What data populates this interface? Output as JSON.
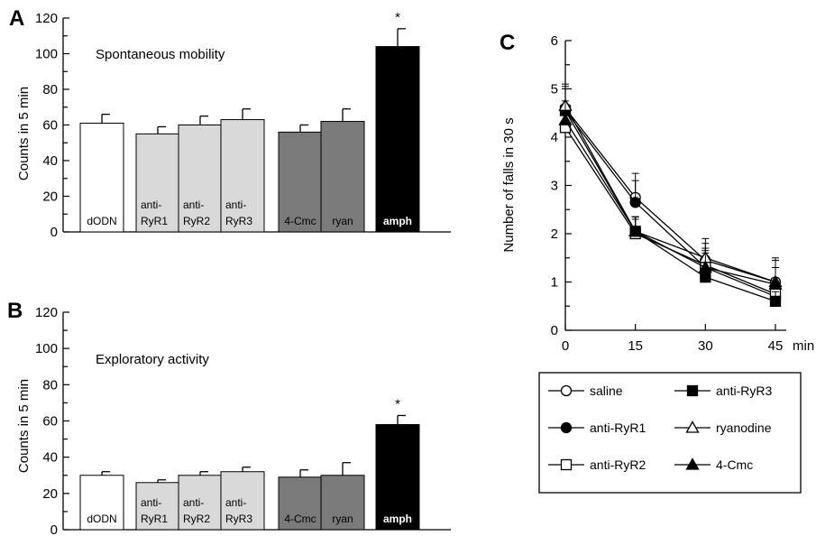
{
  "colors": {
    "white": "#ffffff",
    "light_gray": "#d9d9d9",
    "dark_gray": "#7a7a7a",
    "black": "#000000"
  },
  "chart_data": [
    {
      "panel": "A",
      "type": "bar",
      "title": "Spontaneous mobility",
      "ylabel": "Counts in 5 min",
      "ylim": [
        0,
        120
      ],
      "yticks": [
        0,
        20,
        40,
        60,
        80,
        100,
        120
      ],
      "categories": [
        "dODN",
        "anti-RyR1",
        "anti-RyR2",
        "anti-RyR3",
        "4-Cmc",
        "ryan",
        "amph"
      ],
      "label_lines": [
        [
          "dODN"
        ],
        [
          "anti-",
          "RyR1"
        ],
        [
          "anti-",
          "RyR2"
        ],
        [
          "anti-",
          "RyR3"
        ],
        [
          "4-Cmc"
        ],
        [
          "ryan"
        ],
        [
          "amph"
        ]
      ],
      "values": [
        61,
        55,
        60,
        63,
        56,
        62,
        104
      ],
      "errors": [
        5,
        4,
        5,
        6,
        4,
        7,
        10
      ],
      "fills": [
        "white",
        "light_gray",
        "light_gray",
        "light_gray",
        "dark_gray",
        "dark_gray",
        "black"
      ],
      "significance": [
        "",
        "",
        "",
        "",
        "",
        "",
        "*"
      ]
    },
    {
      "panel": "B",
      "type": "bar",
      "title": "Exploratory activity",
      "ylabel": "Counts in 5 min",
      "ylim": [
        0,
        120
      ],
      "yticks": [
        0,
        20,
        40,
        60,
        80,
        100,
        120
      ],
      "categories": [
        "dODN",
        "anti-RyR1",
        "anti-RyR2",
        "anti-RyR3",
        "4-Cmc",
        "ryan",
        "amph"
      ],
      "label_lines": [
        [
          "dODN"
        ],
        [
          "anti-",
          "RyR1"
        ],
        [
          "anti-",
          "RyR2"
        ],
        [
          "anti-",
          "RyR3"
        ],
        [
          "4-Cmc"
        ],
        [
          "ryan"
        ],
        [
          "amph"
        ]
      ],
      "values": [
        30,
        26,
        30,
        32,
        29,
        30,
        58
      ],
      "errors": [
        2,
        1.5,
        2,
        2.5,
        4,
        7,
        5
      ],
      "fills": [
        "white",
        "light_gray",
        "light_gray",
        "light_gray",
        "dark_gray",
        "dark_gray",
        "black"
      ],
      "significance": [
        "",
        "",
        "",
        "",
        "",
        "",
        "*"
      ]
    },
    {
      "panel": "C",
      "type": "line",
      "ylabel": "Number of falls in 30 s",
      "xlabel": "min",
      "x": [
        0,
        15,
        30,
        45
      ],
      "xlim": [
        0,
        45
      ],
      "ylim": [
        0,
        6
      ],
      "yticks": [
        0,
        1,
        2,
        3,
        4,
        5,
        6
      ],
      "series": [
        {
          "name": "saline",
          "marker": "circle-open",
          "values": [
            4.6,
            2.75,
            1.45,
            1.0
          ],
          "errors": [
            0.45,
            0.5,
            0.35,
            0.45
          ]
        },
        {
          "name": "anti-RyR1",
          "marker": "circle-filled",
          "values": [
            4.55,
            2.65,
            1.3,
            0.7
          ],
          "errors": [
            0.45,
            0.45,
            0.3,
            0.3
          ]
        },
        {
          "name": "anti-RyR2",
          "marker": "square-open",
          "values": [
            4.2,
            2.0,
            1.35,
            0.75
          ],
          "errors": [
            0.35,
            0.3,
            0.35,
            0.25
          ]
        },
        {
          "name": "anti-RyR3",
          "marker": "square-filled",
          "values": [
            4.55,
            2.05,
            1.1,
            0.6
          ],
          "errors": [
            0.45,
            0.3,
            0.3,
            0.2
          ]
        },
        {
          "name": "ryanodine",
          "marker": "triangle-open",
          "values": [
            4.65,
            2.05,
            1.5,
            1.0
          ],
          "errors": [
            0.45,
            0.3,
            0.4,
            0.5
          ]
        },
        {
          "name": "4-Cmc",
          "marker": "triangle-filled",
          "values": [
            4.35,
            2.05,
            1.3,
            0.95
          ],
          "errors": [
            0.4,
            0.3,
            0.35,
            0.35
          ]
        }
      ],
      "legend_position": "bottom"
    }
  ]
}
